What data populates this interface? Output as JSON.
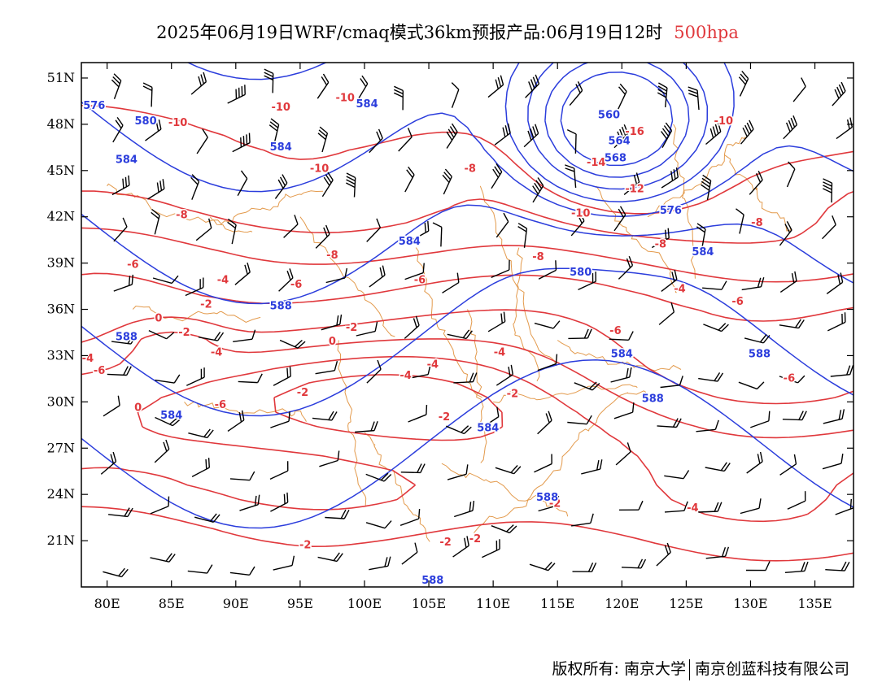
{
  "title": {
    "text": "2025年06月19日WRF/cmaq模式36km预报产品:06月19日12时",
    "level": "500hpa"
  },
  "colors": {
    "height": "#2b3ddc",
    "temperature": "#e0383c",
    "boundary": "#e39a4c",
    "wind": "#000000",
    "level_label": "#e0383c"
  },
  "axes": {
    "lat_labels": [
      "51N",
      "48N",
      "45N",
      "42N",
      "39N",
      "36N",
      "33N",
      "30N",
      "27N",
      "24N",
      "21N"
    ],
    "lat_values": [
      51,
      48,
      45,
      42,
      39,
      36,
      33,
      30,
      27,
      24,
      21
    ],
    "lon_labels": [
      "80E",
      "85E",
      "90E",
      "95E",
      "100E",
      "105E",
      "110E",
      "115E",
      "120E",
      "125E",
      "130E",
      "135E"
    ],
    "lon_values": [
      80,
      85,
      90,
      95,
      100,
      105,
      110,
      115,
      120,
      125,
      130,
      135
    ],
    "lon_range": [
      78,
      138
    ],
    "lat_range": [
      18,
      52
    ]
  },
  "height_labels": [
    {
      "text": "576",
      "lon": 79,
      "lat": 49.0
    },
    {
      "text": "580",
      "lon": 83,
      "lat": 48.0
    },
    {
      "text": "584",
      "lon": 81.5,
      "lat": 45.5
    },
    {
      "text": "584",
      "lon": 100.2,
      "lat": 49.1
    },
    {
      "text": "584",
      "lon": 93.5,
      "lat": 46.3
    },
    {
      "text": "560",
      "lon": 119,
      "lat": 48.4
    },
    {
      "text": "564",
      "lon": 119.8,
      "lat": 46.7
    },
    {
      "text": "568",
      "lon": 119.5,
      "lat": 45.6
    },
    {
      "text": "576",
      "lon": 123.8,
      "lat": 42.2
    },
    {
      "text": "584",
      "lon": 103.5,
      "lat": 40.2
    },
    {
      "text": "580",
      "lon": 116.8,
      "lat": 38.2
    },
    {
      "text": "584",
      "lon": 126.3,
      "lat": 39.5
    },
    {
      "text": "588",
      "lon": 93.5,
      "lat": 36.0
    },
    {
      "text": "588",
      "lon": 81.5,
      "lat": 34.0
    },
    {
      "text": "584",
      "lon": 120.0,
      "lat": 32.9
    },
    {
      "text": "588",
      "lon": 130.7,
      "lat": 32.9
    },
    {
      "text": "588",
      "lon": 122.4,
      "lat": 30.0
    },
    {
      "text": "584",
      "lon": 85,
      "lat": 28.9
    },
    {
      "text": "584",
      "lon": 109.6,
      "lat": 28.1
    },
    {
      "text": "588",
      "lon": 114.2,
      "lat": 23.6
    },
    {
      "text": "588",
      "lon": 105.3,
      "lat": 18.2
    }
  ],
  "temp_labels": [
    {
      "text": "-10",
      "lon": 93.5,
      "lat": 48.9
    },
    {
      "text": "-10",
      "lon": 98.5,
      "lat": 49.5
    },
    {
      "text": "-10",
      "lon": 85.5,
      "lat": 47.9
    },
    {
      "text": "-10",
      "lon": 96.5,
      "lat": 44.9
    },
    {
      "text": "-8",
      "lon": 108.2,
      "lat": 44.9
    },
    {
      "text": "-16",
      "lon": 121.0,
      "lat": 47.3
    },
    {
      "text": "-14",
      "lon": 118.0,
      "lat": 45.3
    },
    {
      "text": "-12",
      "lon": 121.0,
      "lat": 43.6
    },
    {
      "text": "-10",
      "lon": 116.8,
      "lat": 42.0
    },
    {
      "text": "-10",
      "lon": 127.9,
      "lat": 48.0
    },
    {
      "text": "-8",
      "lon": 85.8,
      "lat": 41.9
    },
    {
      "text": "-8",
      "lon": 123.0,
      "lat": 40.0
    },
    {
      "text": "-8",
      "lon": 130.5,
      "lat": 41.4
    },
    {
      "text": "-8",
      "lon": 97.5,
      "lat": 39.3
    },
    {
      "text": "-8",
      "lon": 113.5,
      "lat": 39.2
    },
    {
      "text": "-6",
      "lon": 82.0,
      "lat": 38.7
    },
    {
      "text": "-6",
      "lon": 94.7,
      "lat": 37.4
    },
    {
      "text": "-6",
      "lon": 104.3,
      "lat": 37.7
    },
    {
      "text": "-4",
      "lon": 89.0,
      "lat": 37.7
    },
    {
      "text": "-4",
      "lon": 124.5,
      "lat": 37.1
    },
    {
      "text": "-6",
      "lon": 129.0,
      "lat": 36.3
    },
    {
      "text": "-2",
      "lon": 87.7,
      "lat": 36.1
    },
    {
      "text": "0",
      "lon": 84.0,
      "lat": 35.2
    },
    {
      "text": "-2",
      "lon": 86.0,
      "lat": 34.3
    },
    {
      "text": "-2",
      "lon": 99.0,
      "lat": 34.6
    },
    {
      "text": "0",
      "lon": 97.5,
      "lat": 33.7
    },
    {
      "text": "-6",
      "lon": 119.5,
      "lat": 34.4
    },
    {
      "text": "-4",
      "lon": 88.5,
      "lat": 33.0
    },
    {
      "text": "-4",
      "lon": 110.5,
      "lat": 33.0
    },
    {
      "text": "-4",
      "lon": 105.3,
      "lat": 32.2
    },
    {
      "text": "-4",
      "lon": 103.2,
      "lat": 31.5
    },
    {
      "text": "-4",
      "lon": 78.5,
      "lat": 32.6
    },
    {
      "text": "-6",
      "lon": 79.4,
      "lat": 31.8
    },
    {
      "text": "-6",
      "lon": 133.0,
      "lat": 31.3
    },
    {
      "text": "-2",
      "lon": 95.2,
      "lat": 30.4
    },
    {
      "text": "-2",
      "lon": 111.5,
      "lat": 30.3
    },
    {
      "text": "-6",
      "lon": 88.8,
      "lat": 29.6
    },
    {
      "text": "0",
      "lon": 82.4,
      "lat": 29.4
    },
    {
      "text": "-2",
      "lon": 106.2,
      "lat": 28.8
    },
    {
      "text": "-2",
      "lon": 114.8,
      "lat": 23.2
    },
    {
      "text": "-4",
      "lon": 125.5,
      "lat": 22.9
    },
    {
      "text": "-2",
      "lon": 106.3,
      "lat": 20.7
    },
    {
      "text": "-2",
      "lon": 108.6,
      "lat": 20.9
    },
    {
      "text": "-2",
      "lon": 95.4,
      "lat": 20.5
    }
  ],
  "footer": {
    "copyright": "版权所有: 南京大学",
    "company": "南京创蓝科技有限公司"
  }
}
